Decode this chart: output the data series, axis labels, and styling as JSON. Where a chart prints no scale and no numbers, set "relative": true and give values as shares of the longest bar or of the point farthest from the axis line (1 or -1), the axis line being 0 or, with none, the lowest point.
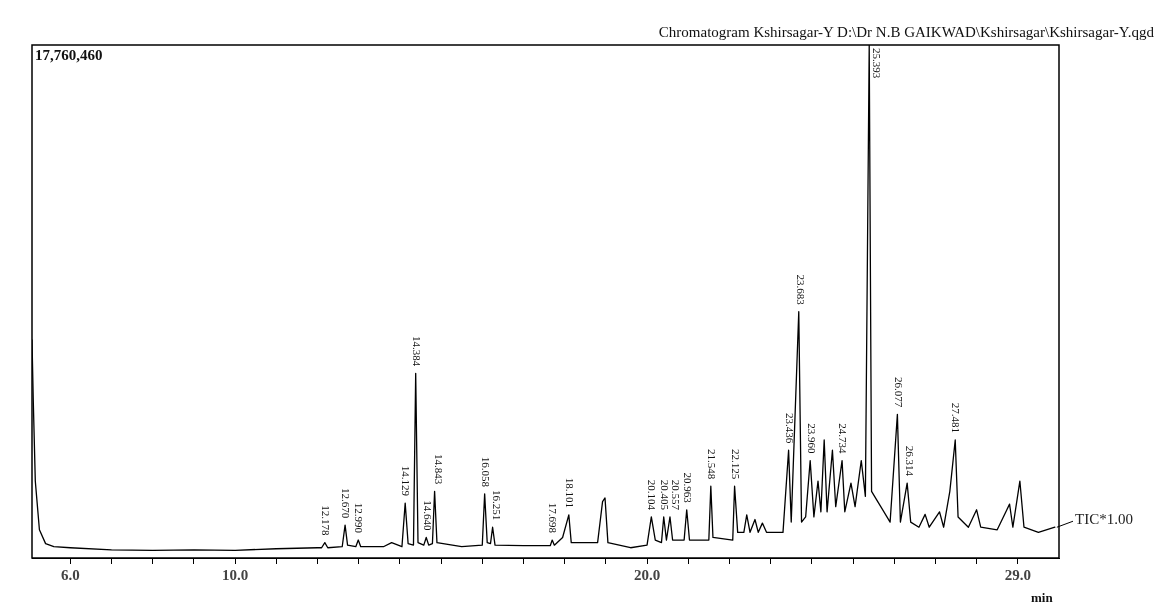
{
  "chart_data": {
    "type": "line",
    "title": "Chromatogram Kshirsagar-Y D:\\Dr N.B GAIKWAD\\Kshirsagar\\Kshirsagar-Y.qgd",
    "xlabel": "min",
    "relative": true,
    "xlim": [
      5.07,
      30.0
    ],
    "xticks": [
      {
        "value": 6,
        "label": "6.0"
      },
      {
        "value": 7,
        "label": null
      },
      {
        "value": 8,
        "label": null
      },
      {
        "value": 9,
        "label": null
      },
      {
        "value": 10,
        "label": "10.0"
      },
      {
        "value": 11,
        "label": null
      },
      {
        "value": 12,
        "label": null
      },
      {
        "value": 13,
        "label": null
      },
      {
        "value": 14,
        "label": null
      },
      {
        "value": 15,
        "label": null
      },
      {
        "value": 16,
        "label": null
      },
      {
        "value": 17,
        "label": null
      },
      {
        "value": 18,
        "label": null
      },
      {
        "value": 19,
        "label": null
      },
      {
        "value": 20,
        "label": "20.0"
      },
      {
        "value": 21,
        "label": null
      },
      {
        "value": 22,
        "label": null
      },
      {
        "value": 23,
        "label": null
      },
      {
        "value": 24,
        "label": null
      },
      {
        "value": 25,
        "label": null
      },
      {
        "value": 26,
        "label": null
      },
      {
        "value": 27,
        "label": null
      },
      {
        "value": 28,
        "label": null
      },
      {
        "value": 29,
        "label": "29.0"
      }
    ],
    "series": [
      {
        "name": "TIC*1.00",
        "color": "#000000",
        "x": [
          5.07,
          5.1,
          5.15,
          5.25,
          5.4,
          5.6,
          6.0,
          7.0,
          8.0,
          9.0,
          10.0,
          11.0,
          12.0,
          12.1,
          12.178,
          12.25,
          12.6,
          12.67,
          12.73,
          12.93,
          12.99,
          13.05,
          13.6,
          13.8,
          14.05,
          14.129,
          14.2,
          14.33,
          14.384,
          14.44,
          14.58,
          14.64,
          14.7,
          14.79,
          14.843,
          14.9,
          15.5,
          16.0,
          16.058,
          16.12,
          16.2,
          16.251,
          16.31,
          17.0,
          17.65,
          17.698,
          17.75,
          17.95,
          18.101,
          18.16,
          18.8,
          18.92,
          18.98,
          19.05,
          19.6,
          20.0,
          20.104,
          20.2,
          20.35,
          20.405,
          20.47,
          20.557,
          20.62,
          20.9,
          20.963,
          21.03,
          21.5,
          21.548,
          21.6,
          22.08,
          22.125,
          22.2,
          22.35,
          22.42,
          22.5,
          22.62,
          22.7,
          22.8,
          22.9,
          23.3,
          23.436,
          23.5,
          23.683,
          23.75,
          23.85,
          23.96,
          24.05,
          24.15,
          24.22,
          24.3,
          24.37,
          24.5,
          24.58,
          24.734,
          24.8,
          24.95,
          25.05,
          25.2,
          25.3,
          25.393,
          25.45,
          25.6,
          25.9,
          26.077,
          26.15,
          26.314,
          26.4,
          26.6,
          26.75,
          26.85,
          27.1,
          27.2,
          27.35,
          27.481,
          27.55,
          27.8,
          28.0,
          28.1,
          28.5,
          28.8,
          28.88,
          29.05,
          29.15,
          29.5,
          29.9
        ],
        "values": [
          0.425,
          0.31,
          0.15,
          0.055,
          0.028,
          0.022,
          0.02,
          0.016,
          0.015,
          0.016,
          0.015,
          0.018,
          0.02,
          0.02,
          0.03,
          0.02,
          0.022,
          0.064,
          0.025,
          0.022,
          0.035,
          0.022,
          0.022,
          0.03,
          0.022,
          0.107,
          0.028,
          0.025,
          0.36,
          0.03,
          0.025,
          0.04,
          0.025,
          0.028,
          0.13,
          0.03,
          0.022,
          0.025,
          0.125,
          0.03,
          0.028,
          0.06,
          0.025,
          0.024,
          0.024,
          0.035,
          0.025,
          0.04,
          0.084,
          0.03,
          0.03,
          0.11,
          0.117,
          0.03,
          0.02,
          0.025,
          0.08,
          0.035,
          0.03,
          0.08,
          0.035,
          0.08,
          0.035,
          0.035,
          0.094,
          0.035,
          0.035,
          0.14,
          0.04,
          0.035,
          0.14,
          0.05,
          0.05,
          0.084,
          0.05,
          0.075,
          0.05,
          0.068,
          0.05,
          0.05,
          0.21,
          0.07,
          0.48,
          0.07,
          0.08,
          0.19,
          0.08,
          0.15,
          0.09,
          0.23,
          0.09,
          0.21,
          0.1,
          0.19,
          0.09,
          0.146,
          0.1,
          0.19,
          0.12,
          1,
          0.13,
          0.11,
          0.07,
          0.28,
          0.07,
          0.146,
          0.07,
          0.06,
          0.085,
          0.06,
          0.09,
          0.06,
          0.13,
          0.23,
          0.08,
          0.06,
          0.094,
          0.06,
          0.055,
          0.105,
          0.06,
          0.15,
          0.06,
          0.05,
          0.06
        ]
      }
    ],
    "annotations": [
      "17,760,460",
      {
        "text": "12.178",
        "x": 12.178,
        "y": 0.03
      },
      {
        "text": "12.670",
        "x": 12.67,
        "y": 0.064
      },
      {
        "text": "12.990",
        "x": 12.99,
        "y": 0.035
      },
      {
        "text": "14.129",
        "x": 14.129,
        "y": 0.107
      },
      {
        "text": "14.384",
        "x": 14.384,
        "y": 0.36
      },
      {
        "text": "14.640",
        "x": 14.64,
        "y": 0.04
      },
      {
        "text": "14.843",
        "x": 14.843,
        "y": 0.13
      },
      {
        "text": "16.058",
        "x": 16.058,
        "y": 0.125
      },
      {
        "text": "16.251",
        "x": 16.251,
        "y": 0.06
      },
      {
        "text": "17.698",
        "x": 17.698,
        "y": 0.035
      },
      {
        "text": "18.101",
        "x": 18.101,
        "y": 0.084
      },
      {
        "text": "20.104",
        "x": 20.104,
        "y": 0.08
      },
      {
        "text": "20.405",
        "x": 20.405,
        "y": 0.08
      },
      {
        "text": "20.557",
        "x": 20.557,
        "y": 0.08
      },
      {
        "text": "20.963",
        "x": 20.963,
        "y": 0.094
      },
      {
        "text": "21.548",
        "x": 21.548,
        "y": 0.14
      },
      {
        "text": "22.125",
        "x": 22.125,
        "y": 0.14
      },
      {
        "text": "23.436",
        "x": 23.436,
        "y": 0.21
      },
      {
        "text": "23.683",
        "x": 23.683,
        "y": 0.48
      },
      {
        "text": "23.960",
        "x": 23.96,
        "y": 0.19
      },
      {
        "text": "24.734",
        "x": 24.734,
        "y": 0.19
      },
      {
        "text": "25.393",
        "x": 25.393,
        "y": 1
      },
      {
        "text": "26.077",
        "x": 26.077,
        "y": 0.28
      },
      {
        "text": "26.314",
        "x": 26.314,
        "y": 0.146
      },
      {
        "text": "27.481",
        "x": 27.481,
        "y": 0.23
      }
    ]
  }
}
